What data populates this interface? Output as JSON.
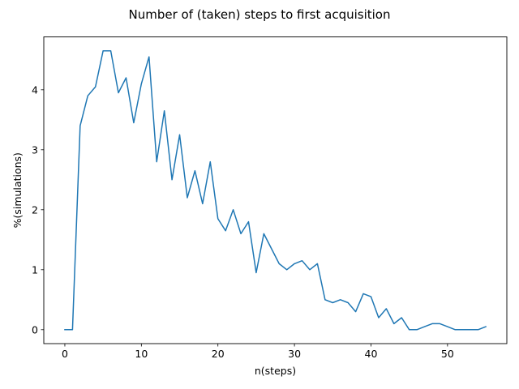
{
  "chart_data": {
    "type": "line",
    "title": "Number of (taken) steps to first acquisition",
    "xlabel": "n(steps)",
    "ylabel": "%(simulations)",
    "xlim": [
      -2.75,
      57.75
    ],
    "ylim": [
      -0.2325,
      4.8825
    ],
    "xticks": [
      0,
      10,
      20,
      30,
      40,
      50
    ],
    "yticks": [
      0,
      1,
      2,
      3,
      4
    ],
    "grid": false,
    "line_color": "#1f77b4",
    "series": [
      {
        "x": [
          0,
          1,
          2,
          3,
          4,
          5,
          6,
          7,
          8,
          9,
          10,
          11,
          12,
          13,
          14,
          15,
          16,
          17,
          18,
          19,
          20,
          21,
          22,
          23,
          24,
          25,
          26,
          27,
          28,
          29,
          30,
          31,
          32,
          33,
          34,
          35,
          36,
          37,
          38,
          39,
          40,
          41,
          42,
          43,
          44,
          45,
          46,
          47,
          48,
          49,
          50,
          51,
          52,
          53,
          54,
          55
        ],
        "y": [
          0,
          0,
          3.4,
          3.9,
          4.05,
          4.65,
          4.65,
          3.95,
          4.2,
          3.45,
          4.1,
          4.55,
          2.8,
          3.65,
          2.5,
          3.25,
          2.2,
          2.65,
          2.1,
          2.8,
          1.85,
          1.65,
          2.0,
          1.6,
          1.8,
          0.95,
          1.6,
          1.35,
          1.1,
          1.0,
          1.1,
          1.15,
          1.0,
          1.1,
          0.5,
          0.45,
          0.5,
          0.45,
          0.3,
          0.6,
          0.55,
          0.2,
          0.35,
          0.1,
          0.2,
          0,
          0,
          0.05,
          0.1,
          0.1,
          0.05,
          0,
          0,
          0,
          0,
          0.05
        ]
      }
    ]
  }
}
